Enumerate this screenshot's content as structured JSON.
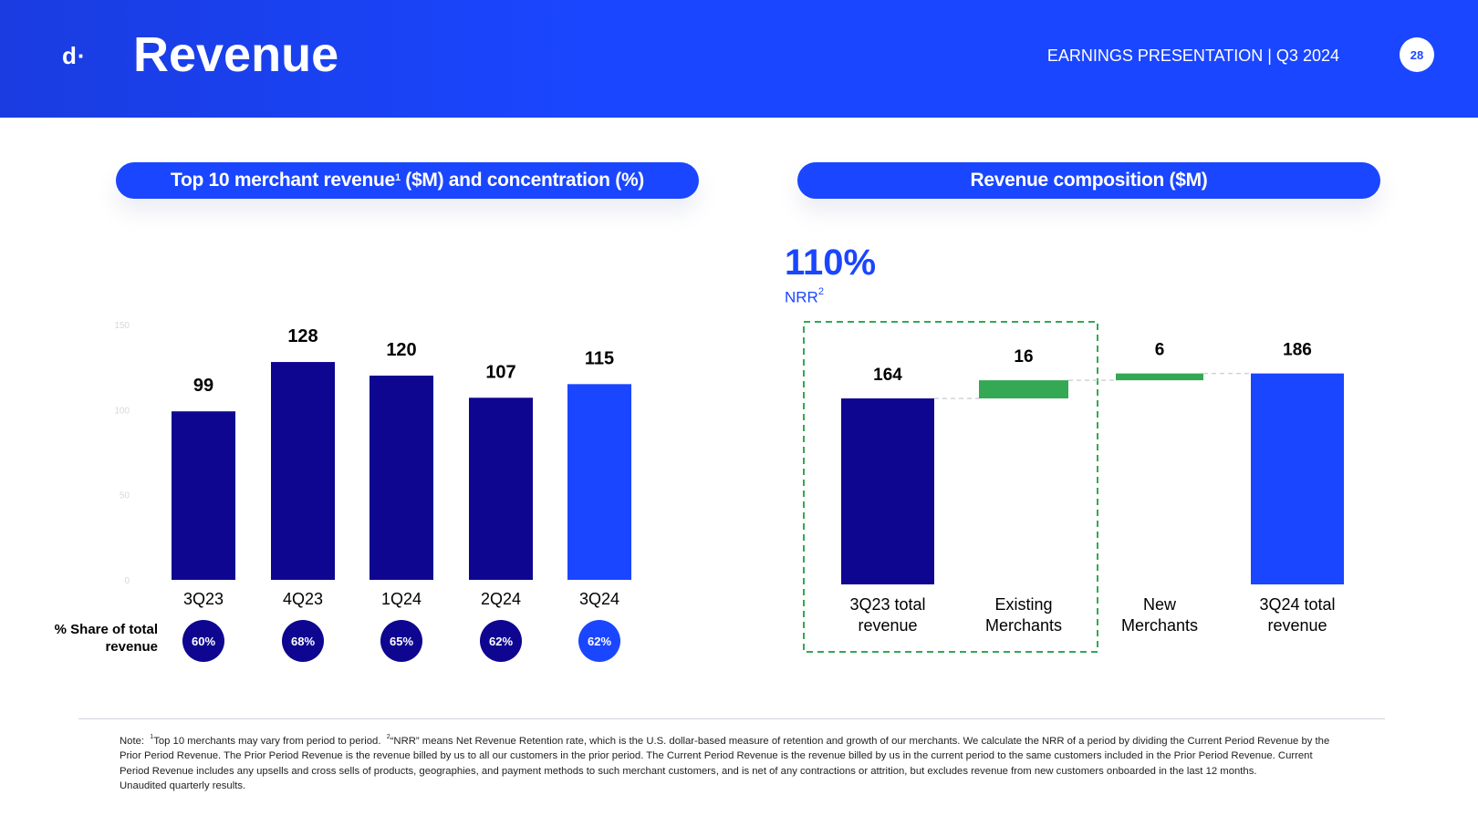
{
  "header": {
    "logo": "d·",
    "title": "Revenue",
    "subtitle": "EARNINGS PRESENTATION | Q3 2024",
    "page_number": "28"
  },
  "left_panel": {
    "title": "Top 10 merchant revenue",
    "title_sup": "1",
    "title_suffix": " ($M) and concentration (%)",
    "share_label": "% Share of total revenue"
  },
  "right_panel": {
    "title": "Revenue composition ($M)",
    "nrr_value": "110%",
    "nrr_label": "NRR",
    "nrr_sup": "2"
  },
  "chart_data": [
    {
      "type": "bar",
      "title": "Top 10 merchant revenue ($M) and concentration (%)",
      "categories": [
        "3Q23",
        "4Q23",
        "1Q24",
        "2Q24",
        "3Q24"
      ],
      "values": [
        99,
        128,
        120,
        107,
        115
      ],
      "value_labels": [
        "99",
        "128",
        "120",
        "107",
        "115"
      ],
      "share_of_total": [
        "60%",
        "68%",
        "65%",
        "62%",
        "62%"
      ],
      "ylim": [
        0,
        150
      ],
      "yticks": [
        "150",
        "100",
        "50",
        "0"
      ],
      "colors": [
        "#0e0590",
        "#0e0590",
        "#0e0590",
        "#0e0590",
        "#1a46ff"
      ]
    },
    {
      "type": "bar",
      "subtype": "waterfall",
      "title": "Revenue composition ($M)",
      "categories": [
        "3Q23 total revenue",
        "Existing Merchants",
        "New Merchants",
        "3Q24 total revenue"
      ],
      "category_lines": [
        [
          "3Q23 total",
          "revenue"
        ],
        [
          "Existing",
          "Merchants"
        ],
        [
          "New",
          "Merchants"
        ],
        [
          "3Q24 total",
          "revenue"
        ]
      ],
      "values": [
        164,
        16,
        6,
        186
      ],
      "value_labels": [
        "164",
        "16",
        "6",
        "186"
      ],
      "kinds": [
        "total",
        "delta",
        "delta",
        "total"
      ],
      "colors": [
        "#0e0590",
        "#34a853",
        "#34a853",
        "#1a46ff"
      ],
      "highlight_box": [
        "3Q23 total revenue",
        "Existing Merchants"
      ],
      "highlight_color": "#34a853"
    }
  ],
  "footer": {
    "note_prefix": "Note:  ",
    "sup1": "1",
    "note1": "Top 10 merchants may vary from period to period.  ",
    "sup2": "2",
    "note2": "“NRR” means Net Revenue Retention rate, which is the U.S. dollar-based measure of retention and growth of our merchants. We calculate the NRR of a period by dividing the Current Period Revenue by the Prior Period Revenue. The Prior Period Revenue is the revenue billed by us to all our customers in the prior period. The Current Period Revenue is the revenue billed by us in the current period to the same customers included in the Prior Period Revenue. Current Period Revenue includes any upsells and cross sells of products, geographies, and payment methods to such merchant customers, and is net of any contractions or attrition, but excludes revenue from new customers onboarded in the last 12 months.",
    "unaudited": "Unaudited quarterly results."
  }
}
